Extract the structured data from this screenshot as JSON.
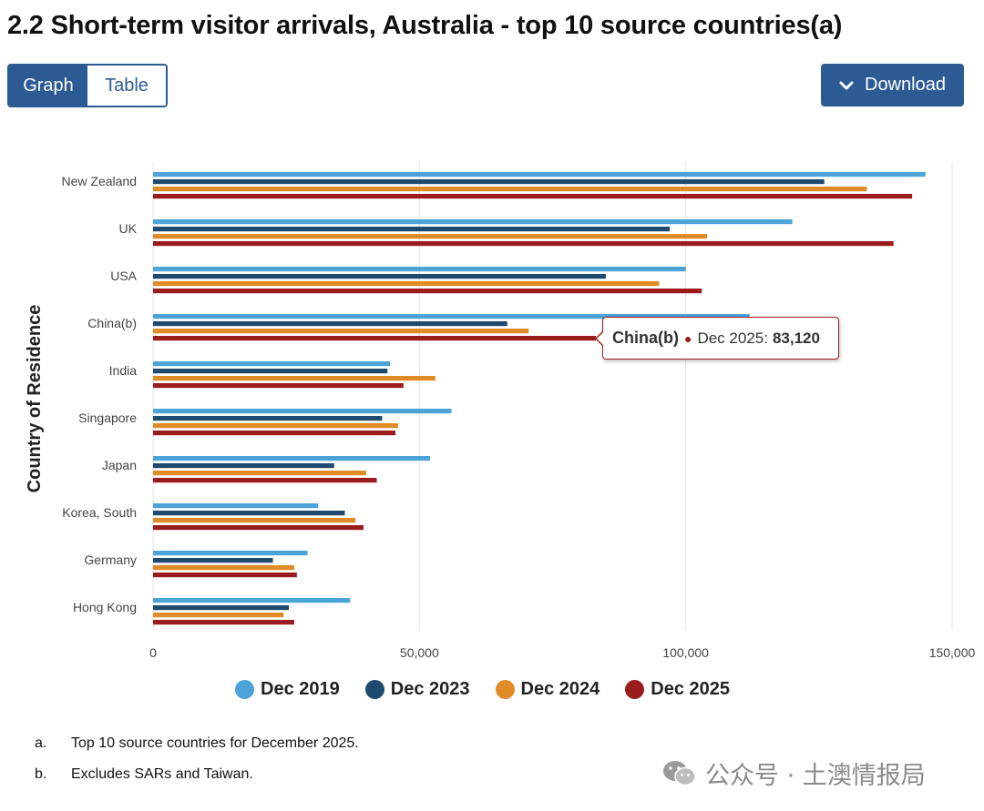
{
  "title": "2.2 Short-term visitor arrivals, Australia - top 10 source countries(a)",
  "toggle": {
    "graph_label": "Graph",
    "table_label": "Table",
    "selected": "Graph"
  },
  "download_label": "Download",
  "colors": {
    "accent": "#2c5b94"
  },
  "chart_data": {
    "type": "bar",
    "orientation": "horizontal",
    "ylabel": "Country of Residence",
    "xlabel": "",
    "xlim": [
      0,
      150000
    ],
    "xticks": [
      0,
      50000,
      100000,
      150000
    ],
    "xtick_labels": [
      "0",
      "50,000",
      "100,000",
      "150,000"
    ],
    "grid": true,
    "legend_position": "bottom",
    "categories": [
      "New Zealand",
      "UK",
      "USA",
      "China(b)",
      "India",
      "Singapore",
      "Japan",
      "Korea, South",
      "Germany",
      "Hong Kong"
    ],
    "series": [
      {
        "name": "Dec 2019",
        "color": "#4ba3d8",
        "values": [
          145000,
          120000,
          100000,
          112000,
          44500,
          56000,
          52000,
          31000,
          29000,
          37000
        ]
      },
      {
        "name": "Dec 2023",
        "color": "#1d4a6e",
        "values": [
          126000,
          97000,
          85000,
          66500,
          44000,
          43000,
          34000,
          36000,
          22500,
          25500
        ]
      },
      {
        "name": "Dec 2024",
        "color": "#e08b25",
        "values": [
          134000,
          104000,
          95000,
          70500,
          53000,
          46000,
          40000,
          38000,
          26500,
          24500
        ]
      },
      {
        "name": "Dec 2025",
        "color": "#9b1c1c",
        "values": [
          142500,
          139000,
          103000,
          83120,
          47000,
          45500,
          42000,
          39500,
          27000,
          26500
        ]
      }
    ]
  },
  "tooltip": {
    "country": "China(b)",
    "series": "Dec 2025:",
    "value": "83,120"
  },
  "footnotes": [
    {
      "label": "a.",
      "text": "Top 10 source countries for December 2025."
    },
    {
      "label": "b.",
      "text": "Excludes SARs and Taiwan."
    }
  ],
  "watermark": {
    "text": "公众号 · 土澳情报局",
    "icon": "wechat-icon"
  }
}
